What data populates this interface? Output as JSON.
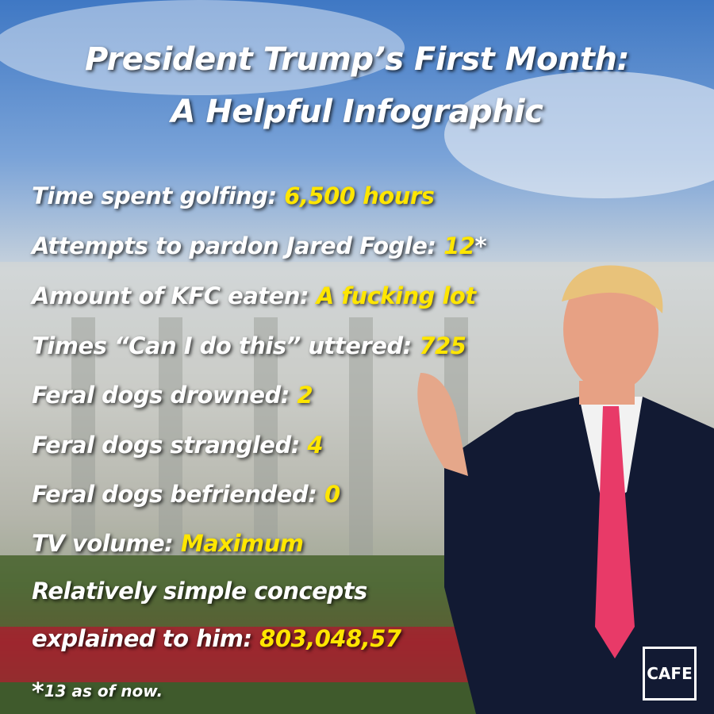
{
  "header": {
    "title_lines": [
      "President Trump’s First Month:",
      "A Helpful Infographic"
    ]
  },
  "rows": [
    {
      "label": "Time spent golfing:",
      "value": "6,500 hours"
    },
    {
      "label": "Attempts to pardon Jared Fogle:",
      "value": "12",
      "suffix": "*"
    },
    {
      "label": "Amount of KFC eaten:",
      "value": "A fucking lot"
    },
    {
      "label": "Times “Can I do this” uttered:",
      "value": "725"
    },
    {
      "label": "Feral dogs drowned:",
      "value": "2"
    },
    {
      "label": "Feral dogs strangled:",
      "value": "4"
    },
    {
      "label": "Feral dogs befriended:",
      "value": "0"
    },
    {
      "label": "TV volume:",
      "value": "Maximum"
    },
    {
      "label_lines": [
        "Relatively simple concepts",
        "explained to him:"
      ],
      "value": "803,048,57"
    }
  ],
  "footnote": {
    "marker": "*",
    "text": "13 as of now."
  },
  "logo": {
    "text": "CAFE"
  }
}
